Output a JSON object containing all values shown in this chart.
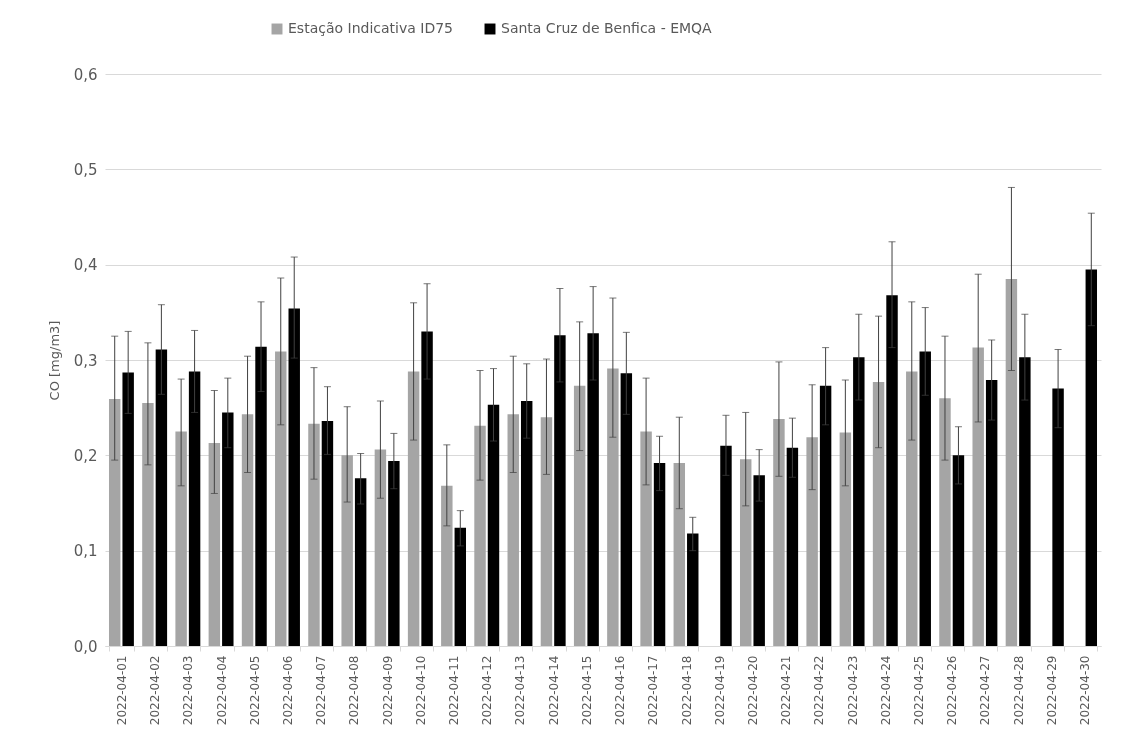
{
  "chart_data": {
    "type": "bar",
    "ylabel": "CO [mg/m3]",
    "categories": [
      "2022-04-01",
      "2022-04-02",
      "2022-04-03",
      "2022-04-04",
      "2022-04-05",
      "2022-04-06",
      "2022-04-07",
      "2022-04-08",
      "2022-04-09",
      "2022-04-10",
      "2022-04-11",
      "2022-04-12",
      "2022-04-13",
      "2022-04-14",
      "2022-04-15",
      "2022-04-16",
      "2022-04-17",
      "2022-04-18",
      "2022-04-19",
      "2022-04-20",
      "2022-04-21",
      "2022-04-22",
      "2022-04-23",
      "2022-04-24",
      "2022-04-25",
      "2022-04-26",
      "2022-04-27",
      "2022-04-28",
      "2022-04-29",
      "2022-04-30"
    ],
    "series": [
      {
        "name": "Estação Indicativa ID75",
        "color": "#a5a5a5",
        "values": [
          0.259,
          0.255,
          0.225,
          0.213,
          0.243,
          0.309,
          0.233,
          0.2,
          0.206,
          0.288,
          0.168,
          0.231,
          0.243,
          0.24,
          0.273,
          0.291,
          0.225,
          0.192,
          null,
          0.196,
          0.238,
          0.219,
          0.224,
          0.277,
          0.288,
          0.26,
          0.313,
          0.385,
          null,
          null
        ],
        "errors": [
          [
            0.195,
            0.325
          ],
          [
            0.19,
            0.318
          ],
          [
            0.168,
            0.28
          ],
          [
            0.16,
            0.268
          ],
          [
            0.182,
            0.304
          ],
          [
            0.232,
            0.386
          ],
          [
            0.175,
            0.292
          ],
          [
            0.151,
            0.251
          ],
          [
            0.155,
            0.257
          ],
          [
            0.216,
            0.36
          ],
          [
            0.126,
            0.211
          ],
          [
            0.174,
            0.289
          ],
          [
            0.182,
            0.304
          ],
          [
            0.18,
            0.301
          ],
          [
            0.205,
            0.34
          ],
          [
            0.219,
            0.365
          ],
          [
            0.169,
            0.281
          ],
          [
            0.144,
            0.24
          ],
          null,
          [
            0.147,
            0.245
          ],
          [
            0.178,
            0.298
          ],
          [
            0.164,
            0.274
          ],
          [
            0.168,
            0.279
          ],
          [
            0.208,
            0.346
          ],
          [
            0.216,
            0.361
          ],
          [
            0.195,
            0.325
          ],
          [
            0.235,
            0.39
          ],
          [
            0.289,
            0.481
          ],
          null,
          null
        ]
      },
      {
        "name": "Santa Cruz de Benfica - EMQA",
        "color": "#000000",
        "values": [
          0.287,
          0.311,
          0.288,
          0.245,
          0.314,
          0.354,
          0.236,
          0.176,
          0.194,
          0.33,
          0.124,
          0.253,
          0.257,
          0.326,
          0.328,
          0.286,
          0.192,
          0.118,
          0.21,
          0.179,
          0.208,
          0.273,
          0.303,
          0.368,
          0.309,
          0.2,
          0.279,
          0.303,
          0.27,
          0.395
        ],
        "errors": [
          [
            0.244,
            0.33
          ],
          [
            0.264,
            0.358
          ],
          [
            0.245,
            0.331
          ],
          [
            0.208,
            0.281
          ],
          [
            0.267,
            0.361
          ],
          [
            0.302,
            0.408
          ],
          [
            0.201,
            0.272
          ],
          [
            0.149,
            0.202
          ],
          [
            0.165,
            0.223
          ],
          [
            0.28,
            0.38
          ],
          [
            0.105,
            0.142
          ],
          [
            0.215,
            0.291
          ],
          [
            0.218,
            0.296
          ],
          [
            0.277,
            0.375
          ],
          [
            0.279,
            0.377
          ],
          [
            0.243,
            0.329
          ],
          [
            0.163,
            0.22
          ],
          [
            0.1,
            0.135
          ],
          [
            0.179,
            0.242
          ],
          [
            0.152,
            0.206
          ],
          [
            0.177,
            0.239
          ],
          [
            0.232,
            0.313
          ],
          [
            0.258,
            0.348
          ],
          [
            0.313,
            0.424
          ],
          [
            0.263,
            0.355
          ],
          [
            0.17,
            0.23
          ],
          [
            0.237,
            0.321
          ],
          [
            0.258,
            0.348
          ],
          [
            0.229,
            0.311
          ],
          [
            0.336,
            0.454
          ]
        ]
      }
    ],
    "ylim": [
      0,
      0.6
    ],
    "yticks": [
      {
        "value": 0,
        "label": "0,0"
      },
      {
        "value": 0.1,
        "label": "0,1"
      },
      {
        "value": 0.2,
        "label": "0,2"
      },
      {
        "value": 0.3,
        "label": "0,3"
      },
      {
        "value": 0.4,
        "label": "0,4"
      },
      {
        "value": 0.5,
        "label": "0,5"
      },
      {
        "value": 0.6,
        "label": "0,6"
      }
    ],
    "grid": "y",
    "legend": "top"
  }
}
